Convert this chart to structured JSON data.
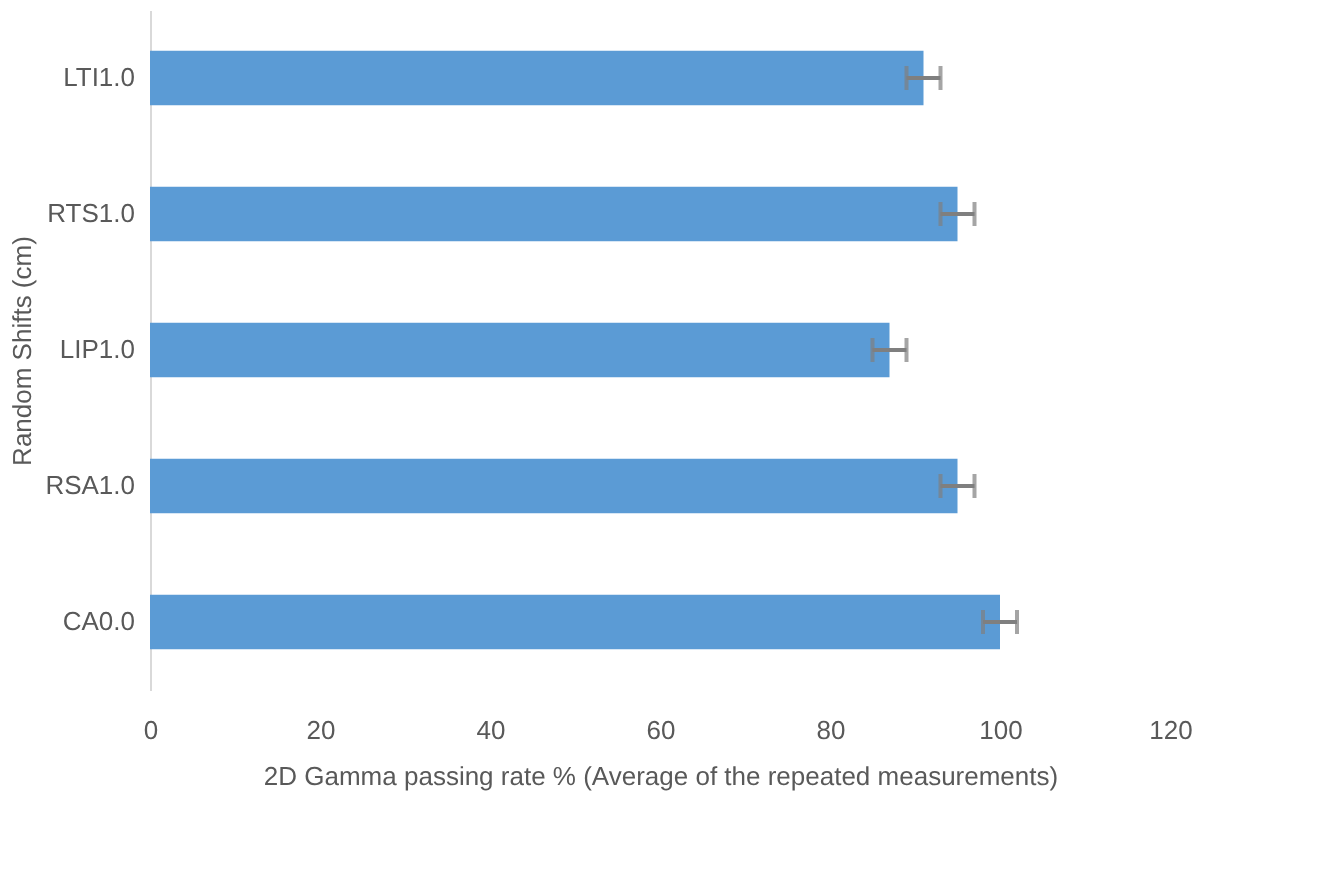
{
  "chart_data": {
    "type": "bar",
    "orientation": "horizontal",
    "xlabel": "2D Gamma passing rate % (Average of the repeated measurements)",
    "ylabel": "Random Shifts (cm)",
    "categories": [
      "LTI1.0",
      "RTS1.0",
      "LIP1.0",
      "RSA1.0",
      "CA0.0"
    ],
    "values": [
      91,
      95,
      87,
      95,
      100
    ],
    "errors": [
      2,
      2,
      2,
      2,
      2
    ],
    "color": "#5b9bd5",
    "xlim": [
      0,
      120
    ],
    "xticks": [
      0,
      20,
      40,
      60,
      80,
      100,
      120
    ],
    "grid": false
  }
}
